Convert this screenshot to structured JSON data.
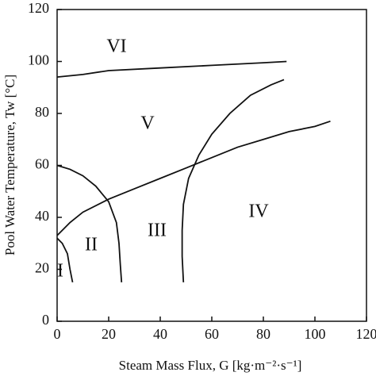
{
  "chart_data": {
    "type": "line",
    "xlabel": "Steam Mass Flux,  G  [kg·m⁻²·s⁻¹]",
    "ylabel": "Pool Water Temperature, Tw  [°C]",
    "xlim": [
      0,
      120
    ],
    "xticks": [
      0,
      20,
      40,
      60,
      80,
      100,
      120
    ],
    "ylim": [
      0,
      120
    ],
    "yticks": [
      0,
      20,
      40,
      60,
      80,
      100,
      120
    ],
    "annotations": [
      "VI",
      "V",
      "IV",
      "III",
      "II",
      "I"
    ],
    "series": [
      {
        "color": "#111111",
        "x": [
          0,
          10,
          20,
          40,
          60,
          80,
          89
        ],
        "values": [
          94,
          95,
          96.5,
          97.5,
          98.5,
          99.5,
          100
        ]
      },
      {
        "color": "#111111",
        "x": [
          0,
          5,
          10,
          20,
          30,
          40,
          50,
          60,
          70,
          80,
          90,
          100,
          106
        ],
        "values": [
          33,
          38,
          42,
          47,
          51,
          55,
          59,
          63,
          67,
          70,
          73,
          75,
          77
        ]
      },
      {
        "color": "#111111",
        "x": [
          0,
          5,
          10,
          15,
          20,
          23,
          24,
          24.5,
          25
        ],
        "values": [
          60,
          58.5,
          56,
          52,
          46,
          38,
          30,
          22,
          15
        ]
      },
      {
        "color": "#111111",
        "x": [
          49,
          48.5,
          48.5,
          49,
          51,
          55,
          60,
          67,
          75,
          83,
          88
        ],
        "values": [
          15,
          25,
          35,
          45,
          55,
          64,
          72,
          80,
          87,
          91,
          93
        ]
      },
      {
        "color": "#111111",
        "x": [
          0,
          2,
          4,
          5,
          6
        ],
        "values": [
          32,
          30,
          26,
          20,
          15
        ]
      }
    ]
  }
}
